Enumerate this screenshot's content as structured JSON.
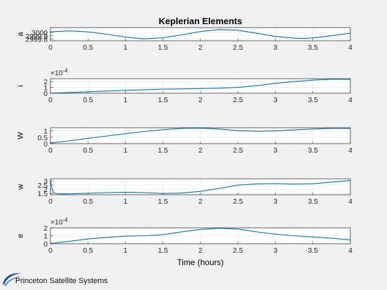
{
  "figure": {
    "title": "Keplerian Elements",
    "xlabel": "Time (hours)",
    "line_color": "#0072bd",
    "background": "#f0f0f0"
  },
  "logo": {
    "text": "Princeton Satellite Systems",
    "color": "#1a3a7a"
  },
  "chart_data": [
    {
      "type": "line",
      "ylabel": "a",
      "xlim": [
        0,
        4
      ],
      "ylim": [
        2999.75,
        3000.15
      ],
      "xticks": [
        "0",
        "0.5",
        "1",
        "1.5",
        "2",
        "2.5",
        "3",
        "3.5",
        "4"
      ],
      "yticks": [
        {
          "v": 2999.8,
          "t": "2999.8"
        },
        {
          "v": 2999.9,
          "t": "2999.9"
        },
        {
          "v": 3000,
          "t": "3000"
        }
      ],
      "exponent": "",
      "series": [
        {
          "x": [
            0,
            0.25,
            0.5,
            0.75,
            1,
            1.25,
            1.5,
            1.75,
            2,
            2.25,
            2.5,
            2.75,
            3,
            3.25,
            3.4,
            3.6,
            3.8,
            4
          ],
          "y": [
            3000.02,
            3000.05,
            3000.02,
            2999.95,
            2999.86,
            2999.81,
            2999.84,
            2999.93,
            3000.03,
            3000.09,
            3000.07,
            2999.98,
            2999.88,
            2999.83,
            2999.82,
            2999.86,
            2999.92,
            2999.98
          ]
        }
      ]
    },
    {
      "type": "line",
      "ylabel": "i",
      "xlim": [
        0,
        4
      ],
      "ylim": [
        0,
        0.00025
      ],
      "xticks": [
        "0",
        "0.5",
        "1",
        "1.5",
        "2",
        "2.5",
        "3",
        "3.5",
        "4"
      ],
      "yticks": [
        {
          "v": 0,
          "t": "0"
        },
        {
          "v": 0.0001,
          "t": "1"
        },
        {
          "v": 0.0002,
          "t": "2"
        }
      ],
      "exponent": "×10",
      "exponent_power": "-4",
      "series": [
        {
          "x": [
            0,
            0.5,
            1,
            1.5,
            2,
            2.25,
            2.5,
            2.75,
            3,
            3.25,
            3.5,
            3.75,
            4
          ],
          "y": [
            0,
            2.5e-05,
            5e-05,
            7e-05,
            8e-05,
            8.7e-05,
            0.0001,
            0.00013,
            0.00017,
            0.0002,
            0.000225,
            0.00024,
            0.00024
          ]
        }
      ]
    },
    {
      "type": "line",
      "ylabel": "W",
      "xlim": [
        0,
        4
      ],
      "ylim": [
        0,
        1.25
      ],
      "xticks": [
        "0",
        "0.5",
        "1",
        "1.5",
        "2",
        "2.5",
        "3",
        "3.5",
        "4"
      ],
      "yticks": [
        {
          "v": 0,
          "t": "0"
        },
        {
          "v": 0.5,
          "t": "0.5"
        },
        {
          "v": 1,
          "t": "1"
        }
      ],
      "exponent": "",
      "series": [
        {
          "x": [
            0,
            0.25,
            0.5,
            0.75,
            1,
            1.25,
            1.5,
            1.75,
            2,
            2.25,
            2.5,
            2.75,
            3,
            3.25,
            3.5,
            3.75,
            4
          ],
          "y": [
            0.05,
            0.22,
            0.42,
            0.6,
            0.78,
            0.95,
            1.1,
            1.2,
            1.22,
            1.15,
            1.02,
            0.97,
            1.0,
            1.08,
            1.15,
            1.2,
            1.2
          ]
        }
      ]
    },
    {
      "type": "line",
      "ylabel": "w",
      "xlim": [
        0,
        4
      ],
      "ylim": [
        1.35,
        3.25
      ],
      "xticks": [
        "0",
        "0.5",
        "1",
        "1.5",
        "2",
        "2.5",
        "3",
        "3.5",
        "4"
      ],
      "yticks": [
        {
          "v": 1.5,
          "t": "1.5"
        },
        {
          "v": 2,
          "t": "2"
        },
        {
          "v": 2.5,
          "t": "2.5"
        },
        {
          "v": 3,
          "t": "3"
        }
      ],
      "exponent": "",
      "series": [
        {
          "x": [
            0,
            0.02,
            0.04,
            0.07,
            0.12,
            0.2,
            0.5,
            0.75,
            1,
            1.25,
            1.5,
            1.75,
            2,
            2.25,
            2.5,
            2.75,
            3,
            3.25,
            3.5,
            3.75,
            4
          ],
          "y": [
            3.1,
            2.1,
            1.6,
            1.5,
            1.45,
            1.45,
            1.52,
            1.6,
            1.65,
            1.6,
            1.5,
            1.55,
            1.75,
            2.1,
            2.5,
            2.65,
            2.68,
            2.62,
            2.66,
            2.85,
            3.05
          ]
        }
      ]
    },
    {
      "type": "line",
      "ylabel": "e",
      "xlim": [
        0,
        4
      ],
      "ylim": [
        0,
        0.0002
      ],
      "xticks": [
        "0",
        "0.5",
        "1",
        "1.5",
        "2",
        "2.5",
        "3",
        "3.5",
        "4"
      ],
      "yticks": [
        {
          "v": 0,
          "t": "0"
        },
        {
          "v": 0.0001,
          "t": "1"
        },
        {
          "v": 0.0002,
          "t": "2"
        }
      ],
      "exponent": "×10",
      "exponent_power": "-4",
      "series": [
        {
          "x": [
            0,
            0.25,
            0.5,
            0.75,
            1,
            1.25,
            1.5,
            1.75,
            2,
            2.25,
            2.5,
            2.75,
            3,
            3.25,
            3.5,
            3.75,
            4
          ],
          "y": [
            3e-06,
            3e-05,
            6e-05,
            8e-05,
            9.5e-05,
            0.0001,
            0.000115,
            0.00015,
            0.00018,
            0.000195,
            0.000185,
            0.00015,
            0.00012,
            0.0001,
            8.5e-05,
            7e-05,
            5e-05
          ]
        }
      ]
    }
  ]
}
